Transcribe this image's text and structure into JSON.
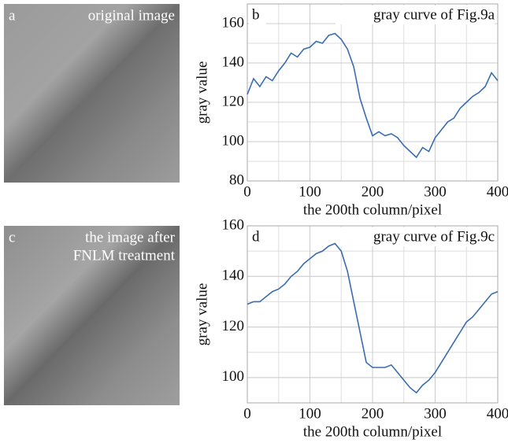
{
  "panels": [
    {
      "label": "a",
      "caption": [
        "original image"
      ]
    },
    {
      "label": "c",
      "caption": [
        "the image after",
        "FNLM treatment"
      ]
    }
  ],
  "chart_data": [
    {
      "type": "line",
      "panel_label": "b",
      "title": "gray curve of Fig.9a",
      "x_label": "the 200th column/pixel",
      "y_label": "gray value",
      "xlim": [
        0,
        400
      ],
      "xticks": [
        0,
        100,
        200,
        300,
        400
      ],
      "ylim": [
        80,
        170
      ],
      "yticks": [
        80,
        100,
        120,
        140,
        160
      ],
      "grid": true,
      "minor_grid": true,
      "series": [
        {
          "color": "#3a6cb0",
          "x": [
            0,
            10,
            20,
            30,
            40,
            50,
            60,
            70,
            80,
            90,
            100,
            110,
            120,
            130,
            140,
            150,
            160,
            170,
            180,
            190,
            200,
            210,
            220,
            230,
            240,
            250,
            260,
            270,
            280,
            290,
            300,
            310,
            320,
            330,
            340,
            350,
            360,
            370,
            380,
            390,
            400
          ],
          "values": [
            124,
            132,
            128,
            133,
            131,
            136,
            140,
            145,
            143,
            147,
            148,
            151,
            150,
            154,
            155,
            152,
            147,
            138,
            122,
            112,
            103,
            105,
            103,
            104,
            102,
            98,
            95,
            92,
            97,
            95,
            102,
            106,
            110,
            112,
            117,
            120,
            123,
            125,
            128,
            135,
            131
          ]
        }
      ]
    },
    {
      "type": "line",
      "panel_label": "d",
      "title": "gray curve of Fig.9c",
      "x_label": "the 200th column/pixel",
      "y_label": "gray value",
      "xlim": [
        0,
        400
      ],
      "xticks": [
        0,
        100,
        200,
        300,
        400
      ],
      "ylim": [
        90,
        160
      ],
      "yticks": [
        100,
        120,
        140,
        160
      ],
      "grid": true,
      "minor_grid": true,
      "series": [
        {
          "color": "#3a6cb0",
          "x": [
            0,
            10,
            20,
            30,
            40,
            50,
            60,
            70,
            80,
            90,
            100,
            110,
            120,
            130,
            140,
            150,
            160,
            170,
            180,
            190,
            200,
            210,
            220,
            230,
            240,
            250,
            260,
            270,
            280,
            290,
            300,
            310,
            320,
            330,
            340,
            350,
            360,
            370,
            380,
            390,
            400
          ],
          "values": [
            129,
            130,
            130,
            132,
            134,
            135,
            137,
            140,
            142,
            145,
            147,
            149,
            150,
            152,
            153,
            150,
            142,
            130,
            118,
            106,
            104,
            104,
            104,
            105,
            102,
            99,
            96,
            94,
            97,
            99,
            102,
            106,
            110,
            114,
            118,
            122,
            124,
            127,
            130,
            133,
            134
          ]
        }
      ]
    }
  ]
}
